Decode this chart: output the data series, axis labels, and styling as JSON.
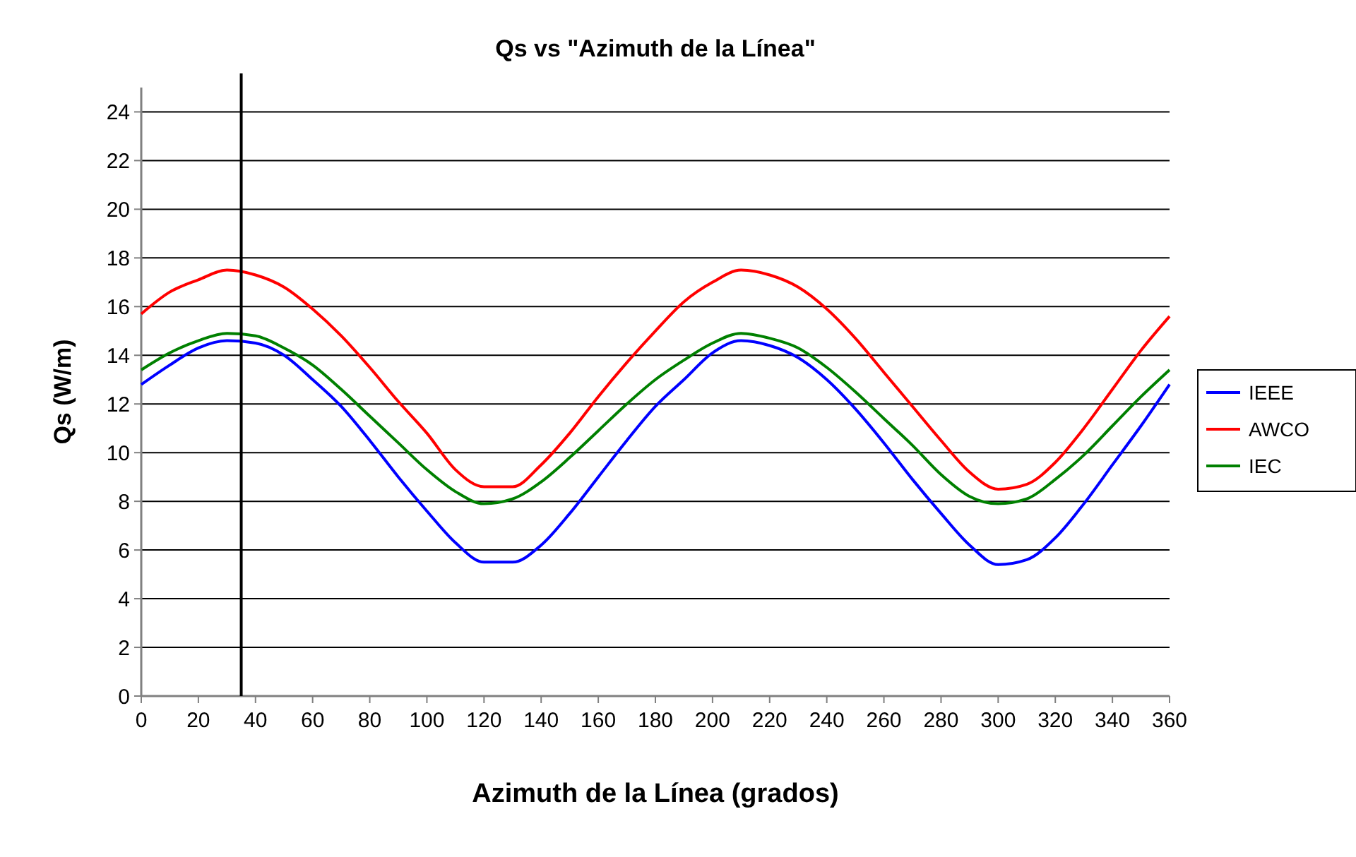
{
  "chart_data": {
    "type": "line",
    "title": "Qs vs \"Azimuth de la Línea\"",
    "xlabel": "Azimuth de la Línea (grados)",
    "ylabel": "Qs (W/m)",
    "x": [
      0,
      10,
      20,
      30,
      40,
      50,
      60,
      70,
      80,
      90,
      100,
      110,
      120,
      130,
      140,
      150,
      160,
      170,
      180,
      190,
      200,
      210,
      220,
      230,
      240,
      250,
      260,
      270,
      280,
      290,
      300,
      310,
      320,
      330,
      340,
      350,
      360
    ],
    "series": [
      {
        "name": "IEEE",
        "color": "#0000ff",
        "values": [
          12.8,
          13.6,
          14.3,
          14.6,
          14.5,
          14.0,
          13.0,
          11.9,
          10.5,
          9.0,
          7.6,
          6.3,
          5.5,
          5.5,
          6.2,
          7.5,
          9.0,
          10.5,
          11.9,
          13.0,
          14.1,
          14.6,
          14.4,
          13.9,
          13.0,
          11.8,
          10.4,
          8.9,
          7.5,
          6.2,
          5.4,
          5.6,
          6.5,
          7.9,
          9.5,
          11.1,
          12.8
        ]
      },
      {
        "name": "AWCO",
        "color": "#ff0000",
        "values": [
          15.7,
          16.6,
          17.1,
          17.5,
          17.3,
          16.8,
          15.9,
          14.8,
          13.5,
          12.1,
          10.8,
          9.3,
          8.6,
          8.6,
          9.5,
          10.8,
          12.3,
          13.7,
          15.0,
          16.2,
          17.0,
          17.5,
          17.3,
          16.8,
          15.9,
          14.7,
          13.3,
          11.9,
          10.5,
          9.2,
          8.5,
          8.7,
          9.6,
          11.0,
          12.6,
          14.2,
          15.6
        ]
      },
      {
        "name": "IEC",
        "color": "#008000",
        "values": [
          13.4,
          14.1,
          14.6,
          14.9,
          14.8,
          14.3,
          13.6,
          12.6,
          11.5,
          10.4,
          9.3,
          8.4,
          7.9,
          8.1,
          8.8,
          9.8,
          10.9,
          12.0,
          13.0,
          13.8,
          14.5,
          14.9,
          14.7,
          14.3,
          13.5,
          12.5,
          11.4,
          10.3,
          9.1,
          8.2,
          7.9,
          8.1,
          8.9,
          9.9,
          11.1,
          12.3,
          13.4
        ]
      }
    ],
    "xlim": [
      0,
      360
    ],
    "xticks": [
      0,
      20,
      40,
      60,
      80,
      100,
      120,
      140,
      160,
      180,
      200,
      220,
      240,
      260,
      280,
      300,
      320,
      340,
      360
    ],
    "ylim": [
      0,
      25
    ],
    "yticks": [
      0,
      2,
      4,
      6,
      8,
      10,
      12,
      14,
      16,
      18,
      20,
      22,
      24
    ],
    "ref_lines": [
      {
        "axis": "x",
        "value": 35,
        "color": "#000000"
      }
    ],
    "grid": "y",
    "legend": "right",
    "line_style": "solid"
  }
}
